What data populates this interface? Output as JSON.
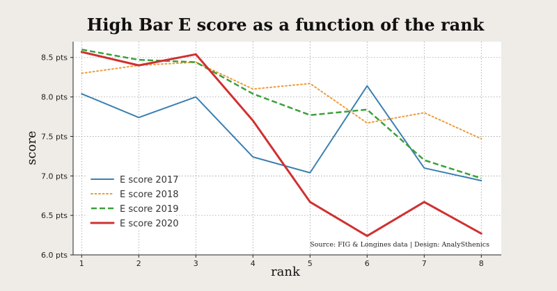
{
  "chart_data": {
    "type": "line",
    "title": "High Bar E score as a function of the rank",
    "xlabel": "rank",
    "ylabel": "score",
    "x": [
      1,
      2,
      3,
      4,
      5,
      6,
      7,
      8
    ],
    "ylim": [
      6.0,
      8.7
    ],
    "xlim": [
      0.85,
      8.35
    ],
    "y_ticks": [
      6.0,
      6.5,
      7.0,
      7.5,
      8.0,
      8.5
    ],
    "y_tick_labels": [
      "6.0 pts",
      "6.5 pts",
      "7.0 pts",
      "7.5 pts",
      "8.0 pts",
      "8.5 pts"
    ],
    "x_tick_labels": [
      "1",
      "2",
      "3",
      "4",
      "5",
      "6",
      "7",
      "8"
    ],
    "grid": true,
    "legend_position": "lower-left",
    "series": [
      {
        "name": "E score 2017",
        "values": [
          8.04,
          7.74,
          8.0,
          7.24,
          7.04,
          8.14,
          7.1,
          6.94
        ],
        "color": "#3a7fb0",
        "style": "solid"
      },
      {
        "name": "E score 2018",
        "values": [
          8.3,
          8.4,
          8.44,
          8.1,
          8.17,
          7.67,
          7.8,
          7.47
        ],
        "color": "#ee9a3a",
        "style": "dotted"
      },
      {
        "name": "E score 2019",
        "values": [
          8.6,
          8.47,
          8.44,
          8.04,
          7.77,
          7.84,
          7.2,
          6.97
        ],
        "color": "#3aa03a",
        "style": "dashed"
      },
      {
        "name": "E score 2020",
        "values": [
          8.57,
          8.4,
          8.54,
          7.7,
          6.67,
          6.24,
          6.67,
          6.27
        ],
        "color": "#d03030",
        "style": "solid-thick"
      }
    ],
    "annotation": "Source: FIG & Longines data  |  Design: AnalySthenics"
  }
}
